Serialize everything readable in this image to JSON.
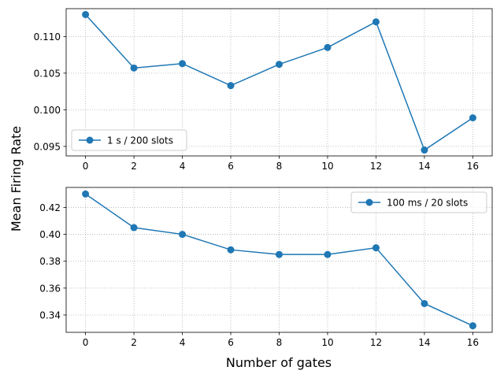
{
  "figure": {
    "ylabel": "Mean Firing Rate",
    "xlabel": "Number of gates"
  },
  "chart_data": [
    {
      "type": "line",
      "x": [
        0,
        2,
        4,
        6,
        8,
        10,
        12,
        14,
        16
      ],
      "series": [
        {
          "name": "1 s / 200 slots",
          "values": [
            0.113,
            0.1057,
            0.1063,
            0.1033,
            0.1062,
            0.1085,
            0.112,
            0.0945,
            0.0989
          ],
          "color": "#1f77b4",
          "marker": "circle"
        }
      ],
      "xticks": [
        0,
        2,
        4,
        6,
        8,
        10,
        12,
        14,
        16
      ],
      "yticks": [
        0.095,
        0.1,
        0.105,
        0.11
      ],
      "ytick_labels": [
        "0.095",
        "0.100",
        "0.105",
        "0.110"
      ],
      "xlim": [
        -0.8,
        16.8
      ],
      "ylim": [
        0.0937,
        0.1138
      ],
      "grid": true,
      "legend_position": "lower-left"
    },
    {
      "type": "line",
      "x": [
        0,
        2,
        4,
        6,
        8,
        10,
        12,
        14,
        16
      ],
      "series": [
        {
          "name": "100 ms / 20 slots",
          "values": [
            0.43,
            0.405,
            0.4,
            0.3885,
            0.385,
            0.385,
            0.39,
            0.3485,
            0.332
          ],
          "color": "#1f77b4",
          "marker": "circle"
        }
      ],
      "xticks": [
        0,
        2,
        4,
        6,
        8,
        10,
        12,
        14,
        16
      ],
      "yticks": [
        0.34,
        0.36,
        0.38,
        0.4,
        0.42
      ],
      "ytick_labels": [
        "0.34",
        "0.36",
        "0.38",
        "0.40",
        "0.42"
      ],
      "xlim": [
        -0.8,
        16.8
      ],
      "ylim": [
        0.3271,
        0.4349
      ],
      "grid": true,
      "legend_position": "upper-right"
    }
  ]
}
